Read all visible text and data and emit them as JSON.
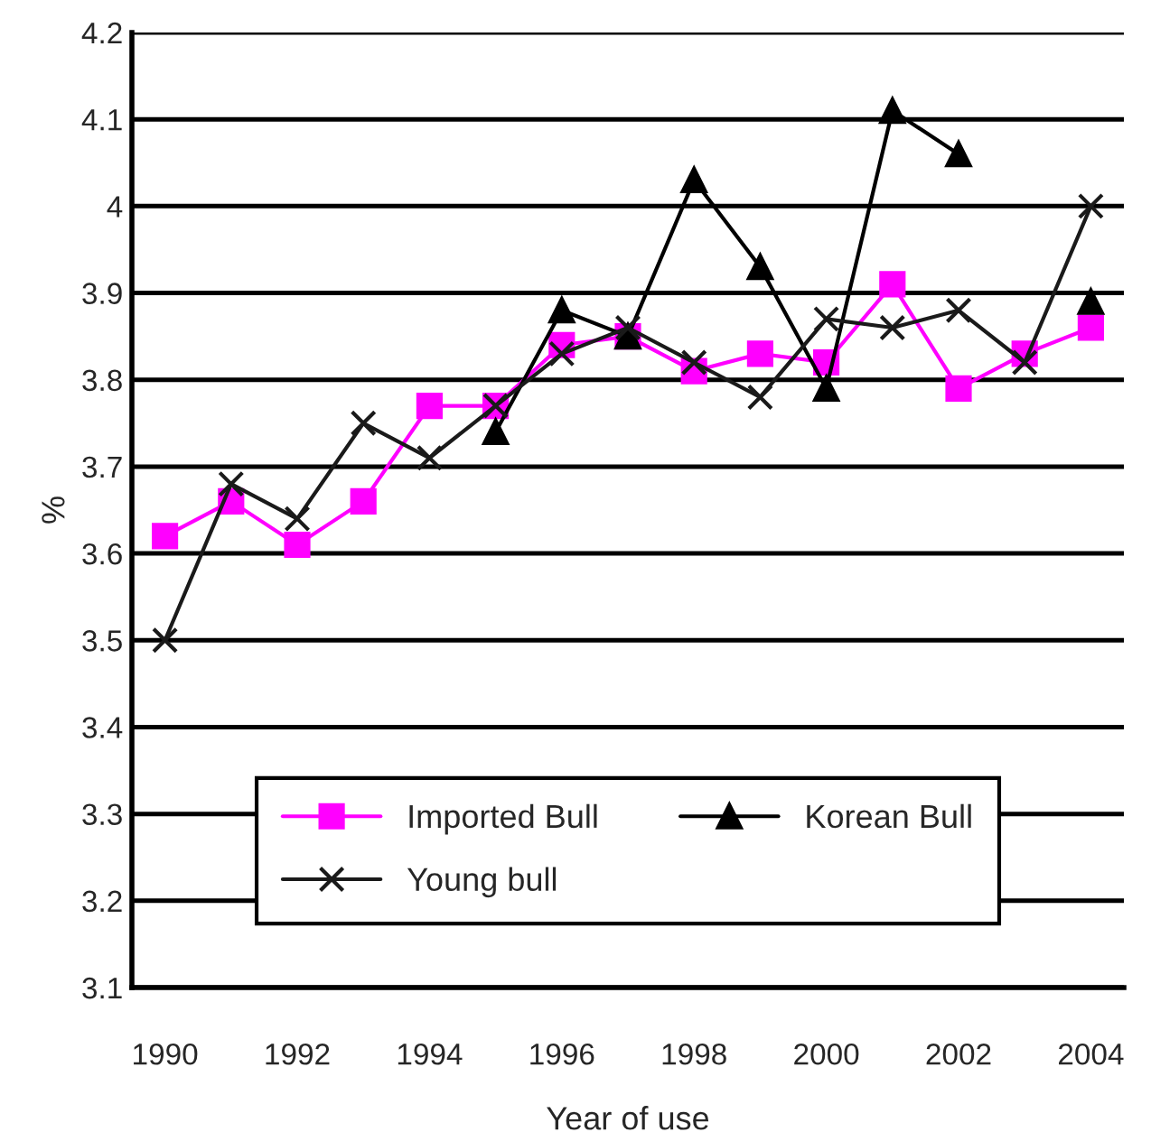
{
  "chart_data": {
    "type": "line",
    "xlabel": "Year of use",
    "ylabel": "%",
    "categories": [
      "1990",
      null,
      "1992",
      null,
      "1994",
      null,
      "1996",
      null,
      "1998",
      null,
      "2000",
      null,
      "2002",
      null,
      "2004"
    ],
    "series": [
      {
        "name": "Imported Bull",
        "color": "#ff00ff",
        "marker": "square",
        "values": [
          3.62,
          3.66,
          3.61,
          3.66,
          3.77,
          3.77,
          3.84,
          3.85,
          3.81,
          3.83,
          3.82,
          3.91,
          3.79,
          3.83,
          3.86
        ]
      },
      {
        "name": "Korean Bull",
        "color": "#000000",
        "marker": "triangle",
        "values": [
          null,
          null,
          null,
          null,
          null,
          3.74,
          3.88,
          3.85,
          4.03,
          3.93,
          3.79,
          4.11,
          4.06,
          null,
          3.89
        ]
      },
      {
        "name": "Young bull",
        "color": "#1a1a1a",
        "marker": "cross",
        "values": [
          3.5,
          3.68,
          3.64,
          3.75,
          3.71,
          3.77,
          3.83,
          3.86,
          3.82,
          3.78,
          3.87,
          3.86,
          3.88,
          3.82,
          4.0
        ]
      }
    ],
    "ylim": [
      3.1,
      4.2
    ],
    "yticks": [
      3.1,
      3.2,
      3.3,
      3.4,
      3.5,
      3.6,
      3.7,
      3.8,
      3.9,
      4,
      4.1,
      4.2
    ],
    "grid": "y",
    "legend": "bottom",
    "line_style": "solid"
  }
}
